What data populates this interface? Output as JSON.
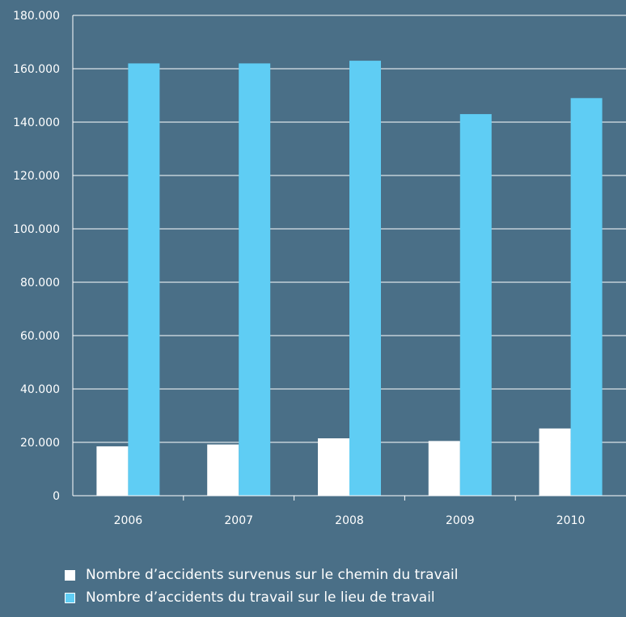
{
  "chart_data": {
    "type": "bar",
    "categories": [
      "2006",
      "2007",
      "2008",
      "2009",
      "2010"
    ],
    "series": [
      {
        "name": "Nombre d’accidents survenus sur le chemin du travail",
        "values": [
          18500,
          19200,
          21500,
          20500,
          25200
        ],
        "color": "#ffffff"
      },
      {
        "name": "Nombre d’accidents du travail sur le lieu de travail",
        "values": [
          162000,
          162000,
          163000,
          143000,
          149000
        ],
        "color": "#5fcdf4"
      }
    ],
    "ylim": [
      0,
      180000
    ],
    "yticks": [
      0,
      20000,
      40000,
      60000,
      80000,
      100000,
      120000,
      140000,
      160000,
      180000
    ],
    "ytick_labels": [
      "0",
      "20.000",
      "40.000",
      "60.000",
      "80.000",
      "100.000",
      "120.000",
      "140.000",
      "160.000",
      "180.000"
    ],
    "grid": true,
    "legend_position": "bottom-left",
    "title": "",
    "xlabel": "",
    "ylabel": ""
  }
}
